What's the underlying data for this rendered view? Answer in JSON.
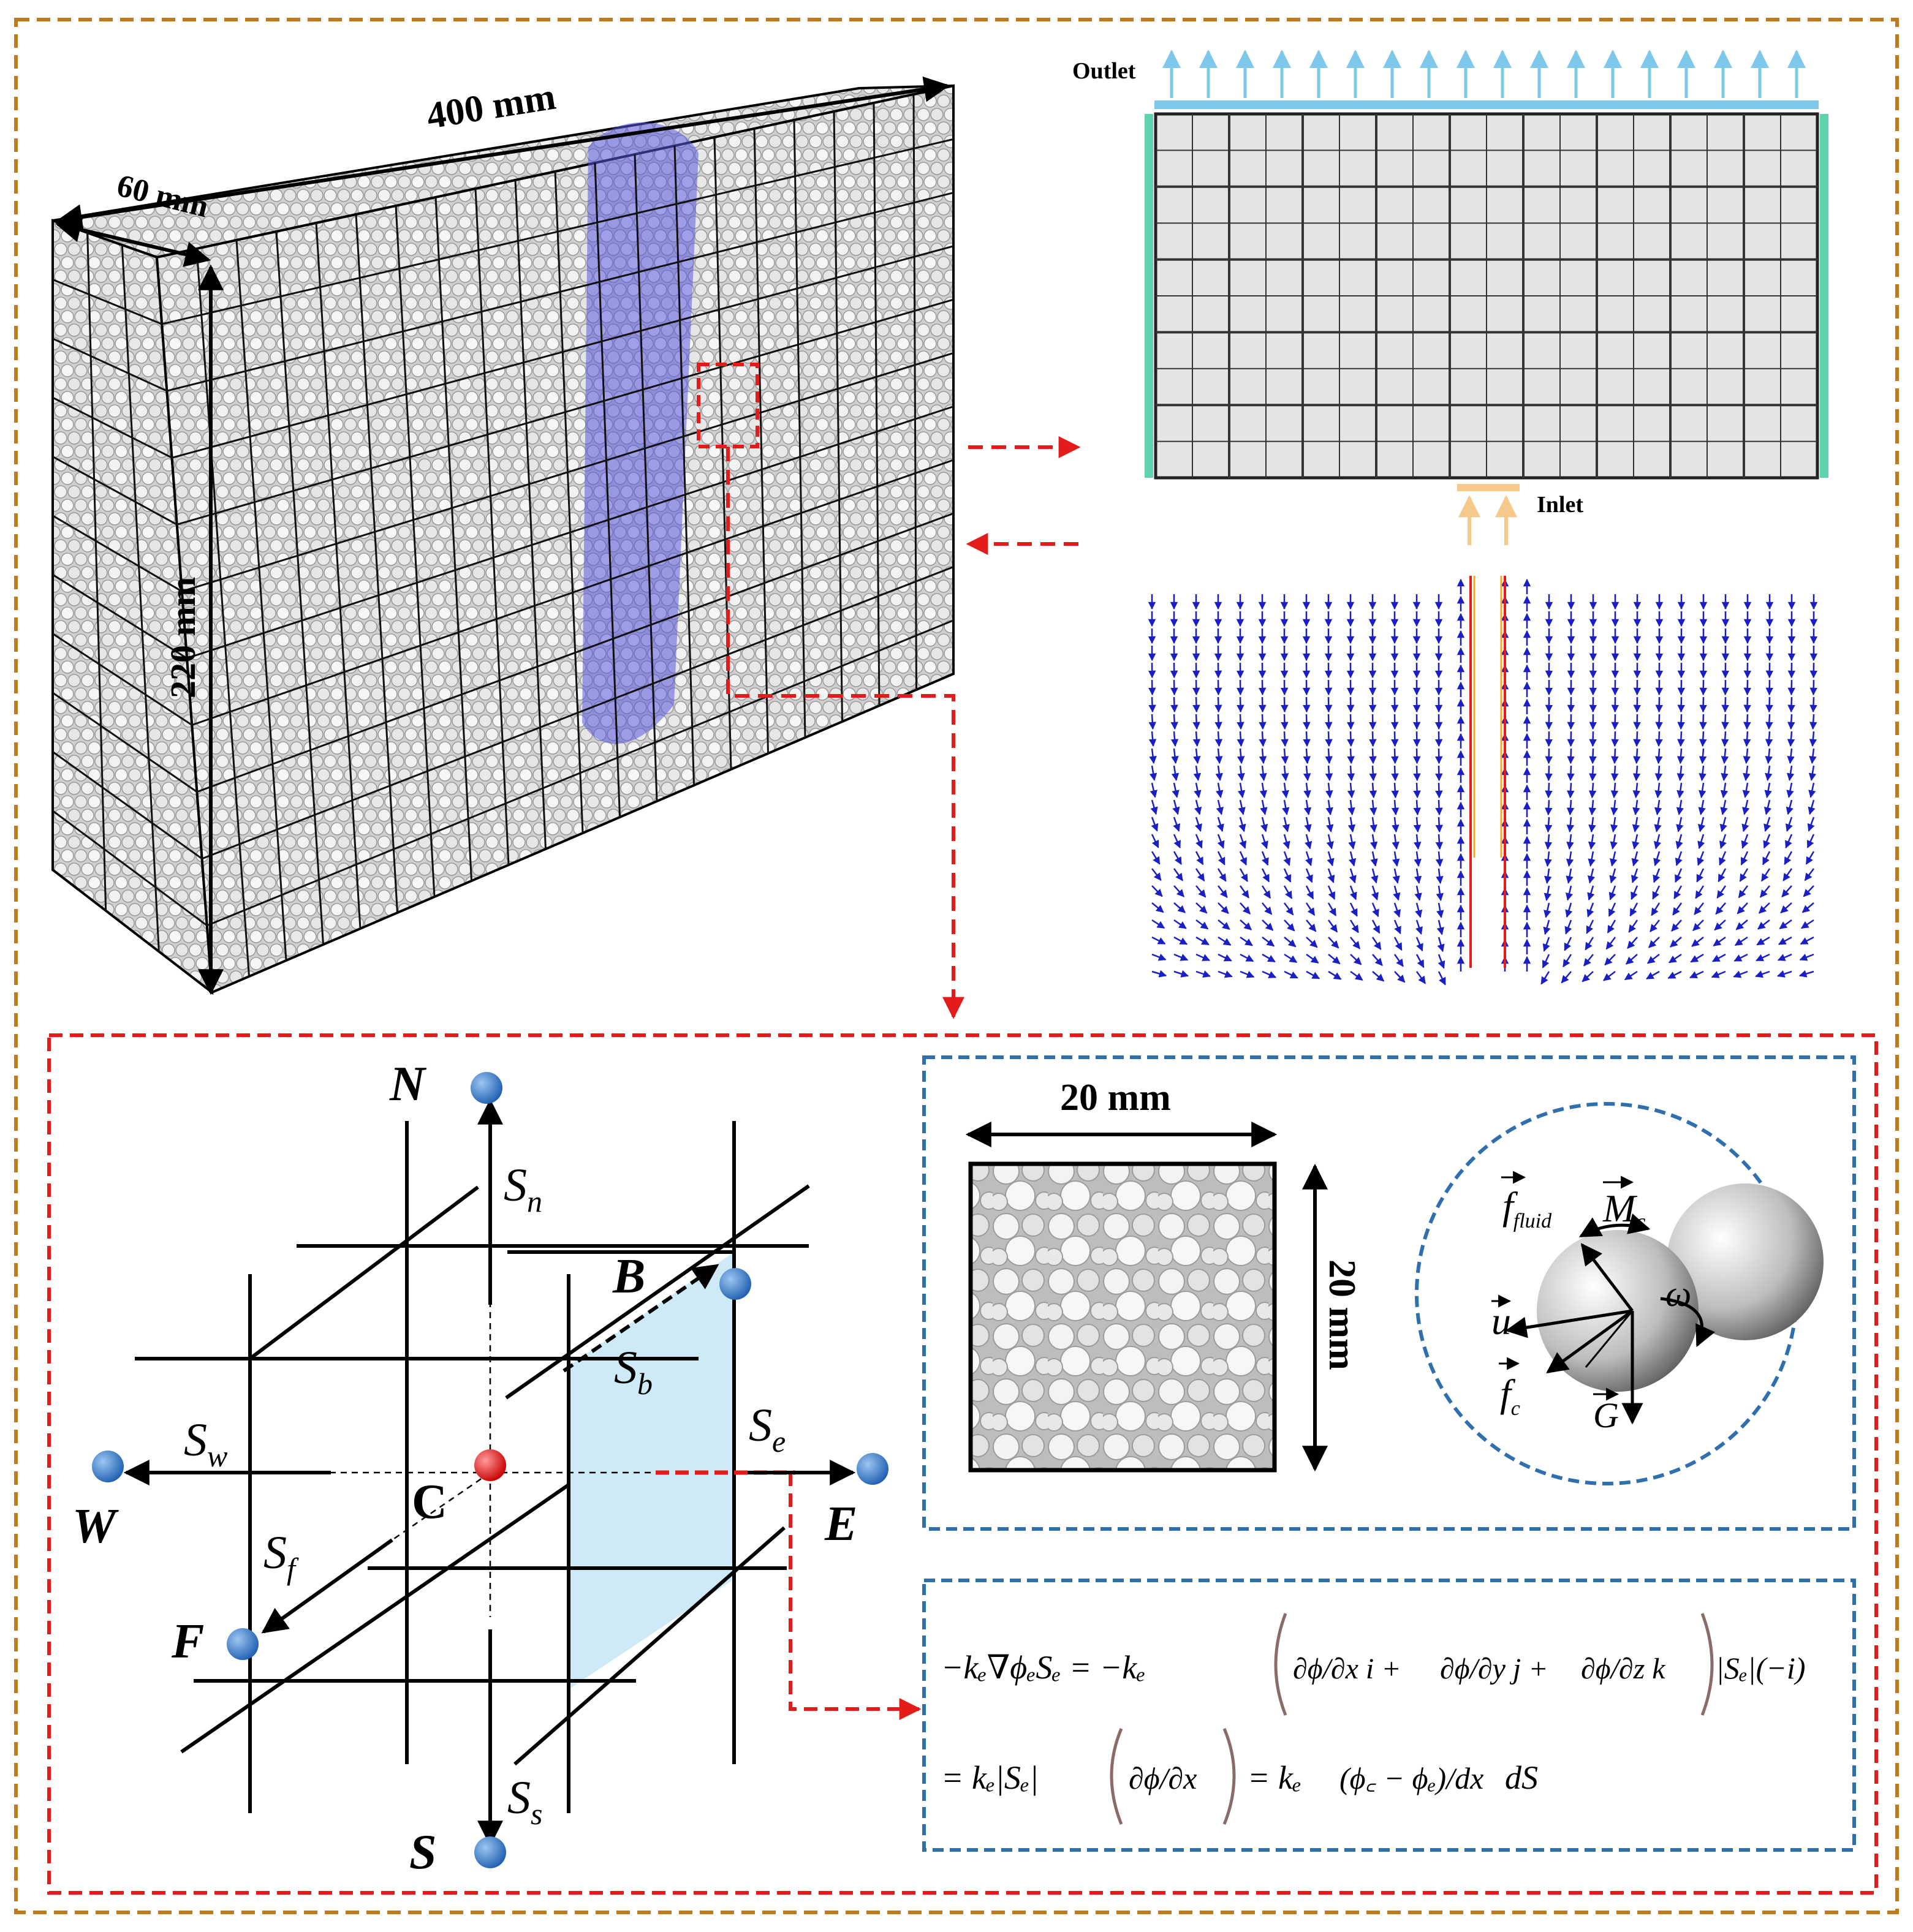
{
  "labels": {
    "length": "400 mm",
    "width": "60 mm",
    "height": "220 mm",
    "outlet": "Outlet",
    "inlet": "Inlet",
    "cell_w": "20 mm",
    "cell_h": "20 mm"
  },
  "nodes": {
    "north": "N",
    "south": "S",
    "west": "W",
    "east": "E",
    "front": "F",
    "back": "B",
    "center": "C"
  },
  "faces": {
    "n": {
      "base": "S",
      "sub": "n"
    },
    "s": {
      "base": "S",
      "sub": "s"
    },
    "w": {
      "base": "S",
      "sub": "w"
    },
    "e": {
      "base": "S",
      "sub": "e"
    },
    "f": {
      "base": "S",
      "sub": "f"
    },
    "b": {
      "base": "S",
      "sub": "b"
    }
  },
  "forces": {
    "f_fluid": {
      "base": "f",
      "sub": "fluid"
    },
    "moment": {
      "base": "M",
      "sub": "c"
    },
    "omega": "ω",
    "velocity": "u",
    "f_contact": {
      "base": "f",
      "sub": "c"
    },
    "gravity": "G"
  },
  "equation": {
    "line1_lhs": "−kₑ∇ϕₑSₑ = −kₑ",
    "line1_t1": "∂ϕ/∂x i +",
    "line1_t2": "∂ϕ/∂y j +",
    "line1_t3": "∂ϕ/∂z k",
    "line1_tail": "|Sₑ|(−i)",
    "line2_a": "= kₑ|Sₑ|",
    "line2_b": "∂ϕ/∂x",
    "line2_c": "= kₑ",
    "line2_d": "(ϕ꜀ − ϕₑ)/dx",
    "line2_e": "dS"
  },
  "colors": {
    "outer_border": "#c07a1e",
    "zoom_border": "#e31b1b",
    "panel_border": "#2f6fad",
    "wall": "#5fd3b0",
    "outlet_arrow": "#7ec8ec",
    "inlet_arrow": "#f5c98a",
    "vector": "#1a1fc4",
    "plume": "#5a5ae0",
    "face_fill": "#cfeaf7",
    "node_blue": "#1f5fb0",
    "node_red": "#e01010"
  }
}
